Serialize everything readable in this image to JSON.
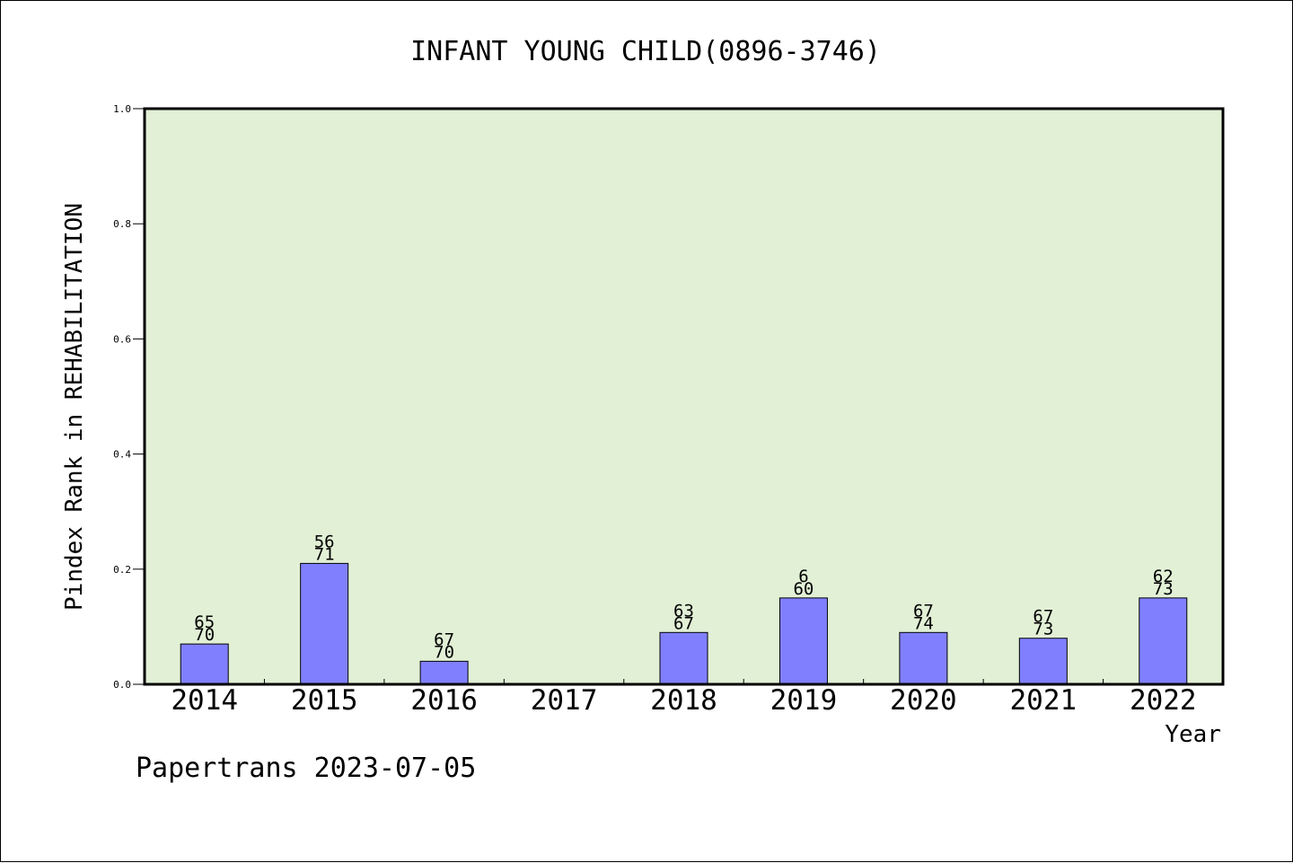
{
  "chart_data": {
    "type": "bar",
    "title": "INFANT YOUNG CHILD(0896-3746)",
    "xlabel": "Year",
    "ylabel": "Pindex Rank in REHABILITATION",
    "ylim": [
      0,
      1.0
    ],
    "yticks": [
      "0.0",
      "0.2",
      "0.4",
      "0.6",
      "0.8",
      "1.0"
    ],
    "categories": [
      "2014",
      "2015",
      "2016",
      "2017",
      "2018",
      "2019",
      "2020",
      "2021",
      "2022"
    ],
    "values": [
      0.07,
      0.21,
      0.04,
      null,
      0.09,
      0.15,
      0.09,
      0.08,
      0.15
    ],
    "labels_top": [
      "65",
      "56",
      "67",
      "",
      "63",
      "6",
      "67",
      "67",
      "62"
    ],
    "labels_bottom": [
      "70",
      "71",
      "70",
      "",
      "67",
      "60",
      "74",
      "73",
      "73"
    ],
    "grid": false,
    "colors": {
      "plot_bg": "#e2f0d6",
      "bar": "#8080ff",
      "frame": "#000000"
    }
  },
  "footer": "Papertrans 2023-07-05"
}
